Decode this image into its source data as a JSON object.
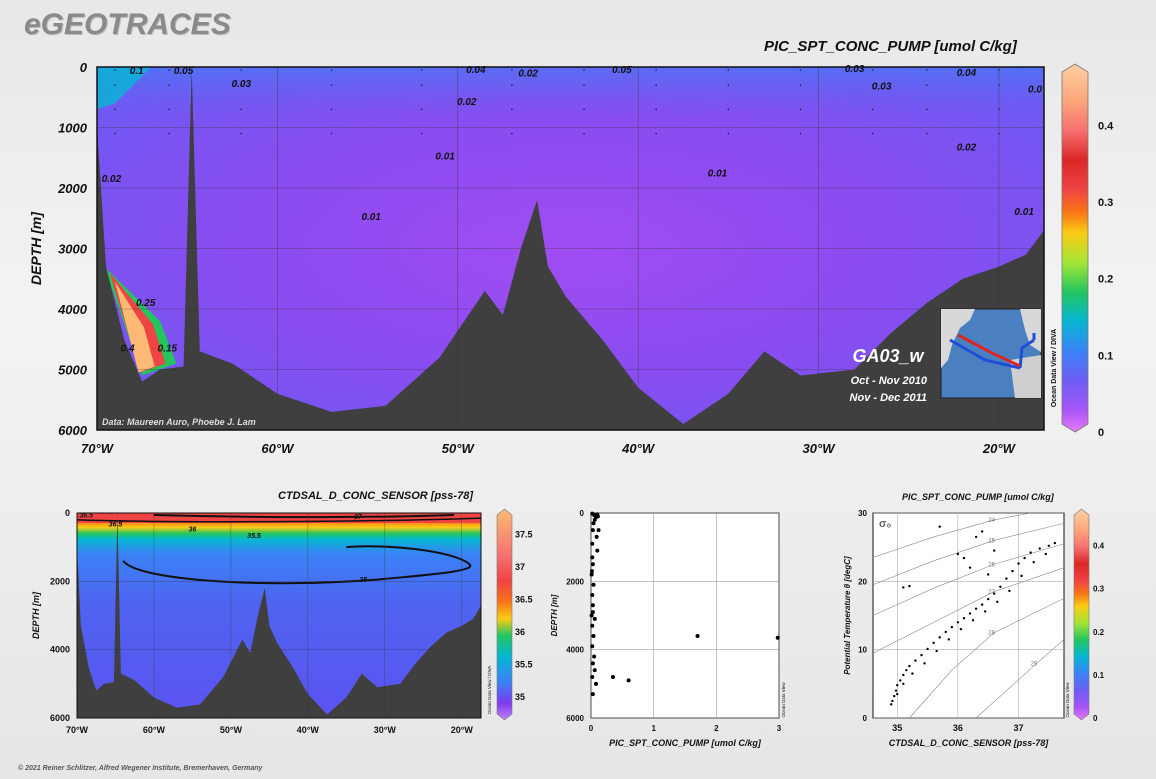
{
  "brand": "eGEOTRACES",
  "copyright": "© 2021 Reiner Schlitzer, Alfred Wegener Institute, Bremerhaven, Germany",
  "colors": {
    "land": "#3f3f3f",
    "background": "#ececec",
    "colormap": [
      "#a855f7",
      "#7c3aed",
      "#4f46e5",
      "#3b82f6",
      "#06b6d4",
      "#22c55e",
      "#84cc16",
      "#facc15",
      "#f97316",
      "#ef4444",
      "#dc2626",
      "#f87171",
      "#fdba74",
      "#fed7aa"
    ]
  },
  "main": {
    "title": "PIC_SPT_CONC_PUMP [umol C/kg]",
    "credit": "Data: Maureen Auro, Phoebe J. Lam",
    "section_label": "GA03_w",
    "dates": [
      "Oct - Nov 2010",
      "Nov - Dec 2011"
    ],
    "odv_tag": "Ocean Data View / DIVA"
  },
  "sal": {
    "title": "CTDSAL_D_CONC_SENSOR [pss-78]",
    "odv_tag": "Ocean Data View / DIVA"
  },
  "profile": {
    "odv_tag": "Ocean Data View"
  },
  "ts": {
    "title": "PIC_SPT_CONC_PUMP [umol C/kg]",
    "sigma_label": "σ₀",
    "odv_tag": "Ocean Data View"
  },
  "chart_data": [
    {
      "type": "heatmap",
      "id": "main-section",
      "title": "PIC_SPT_CONC_PUMP [umol C/kg]",
      "ylabel": "DEPTH [m]",
      "xlim": [
        -70,
        -17.5
      ],
      "ylim": [
        6000,
        0
      ],
      "x_ticks": [
        -70,
        -60,
        -50,
        -40,
        -30,
        -20
      ],
      "x_tick_labels": [
        "70°W",
        "60°W",
        "50°W",
        "40°W",
        "30°W",
        "20°W"
      ],
      "y_ticks": [
        0,
        1000,
        2000,
        3000,
        4000,
        5000,
        6000
      ],
      "y_tick_labels": [
        "0",
        "1000",
        "2000",
        "3000",
        "4000",
        "5000",
        "6000"
      ],
      "colorbar": {
        "range": [
          0,
          0.48
        ],
        "ticks": [
          0,
          0.1,
          0.2,
          0.3,
          0.4
        ],
        "tick_labels": [
          "0",
          "0.1",
          "0.2",
          "0.3",
          "0.4"
        ]
      },
      "bathymetry": [
        [
          -70,
          1000
        ],
        [
          -69.5,
          3300
        ],
        [
          -68.5,
          4500
        ],
        [
          -67.5,
          5200
        ],
        [
          -66.5,
          5000
        ],
        [
          -65.2,
          4950
        ],
        [
          -64.75,
          20
        ],
        [
          -64.3,
          4700
        ],
        [
          -62.5,
          4900
        ],
        [
          -60,
          5400
        ],
        [
          -57,
          5700
        ],
        [
          -54,
          5600
        ],
        [
          -51,
          4800
        ],
        [
          -48.5,
          3700
        ],
        [
          -47.5,
          4100
        ],
        [
          -46.5,
          3000
        ],
        [
          -45.6,
          2200
        ],
        [
          -45,
          3300
        ],
        [
          -44,
          3800
        ],
        [
          -42,
          4500
        ],
        [
          -40,
          5300
        ],
        [
          -37.5,
          5900
        ],
        [
          -35,
          5400
        ],
        [
          -33,
          4700
        ],
        [
          -31,
          5100
        ],
        [
          -28,
          5000
        ],
        [
          -26,
          4400
        ],
        [
          -24,
          3900
        ],
        [
          -22,
          3500
        ],
        [
          -20,
          3300
        ],
        [
          -18.5,
          3100
        ],
        [
          -17.5,
          2700
        ]
      ],
      "contour_labels": [
        {
          "x": -67.8,
          "y": 70,
          "value": "0.1"
        },
        {
          "x": -65.2,
          "y": 70,
          "value": "0.05"
        },
        {
          "x": -62,
          "y": 280,
          "value": "0.03"
        },
        {
          "x": -49,
          "y": 50,
          "value": "0.04"
        },
        {
          "x": -46.1,
          "y": 110,
          "value": "0.02"
        },
        {
          "x": -40.9,
          "y": 50,
          "value": "0.05"
        },
        {
          "x": -49.5,
          "y": 580,
          "value": "0.02"
        },
        {
          "x": -28,
          "y": 30,
          "value": "0.03"
        },
        {
          "x": -26.5,
          "y": 320,
          "value": "0.03"
        },
        {
          "x": -21.8,
          "y": 100,
          "value": "0.04"
        },
        {
          "x": -18,
          "y": 370,
          "value": "0.0"
        },
        {
          "x": -69.2,
          "y": 1850,
          "value": "0.02"
        },
        {
          "x": -50.7,
          "y": 1480,
          "value": "0.01"
        },
        {
          "x": -35.6,
          "y": 1760,
          "value": "0.01"
        },
        {
          "x": -21.8,
          "y": 1330,
          "value": "0.02"
        },
        {
          "x": -18.6,
          "y": 2400,
          "value": "0.01"
        },
        {
          "x": -54.8,
          "y": 2480,
          "value": "0.01"
        },
        {
          "x": -67.3,
          "y": 3900,
          "value": "0.25"
        },
        {
          "x": -68.3,
          "y": 4650,
          "value": "0.4"
        },
        {
          "x": -66.1,
          "y": 4650,
          "value": "0.15"
        }
      ]
    },
    {
      "type": "heatmap",
      "id": "salinity-section",
      "title": "CTDSAL_D_CONC_SENSOR [pss-78]",
      "ylabel": "DEPTH [m]",
      "xlim": [
        -70,
        -17.5
      ],
      "ylim": [
        6000,
        0
      ],
      "x_ticks": [
        -70,
        -60,
        -50,
        -40,
        -30,
        -20
      ],
      "x_tick_labels": [
        "70°W",
        "60°W",
        "50°W",
        "40°W",
        "30°W",
        "20°W"
      ],
      "y_ticks": [
        0,
        2000,
        4000,
        6000
      ],
      "y_tick_labels": [
        "0",
        "2000",
        "4000",
        "6000"
      ],
      "colorbar": {
        "range": [
          34.8,
          37.8
        ],
        "ticks": [
          35,
          35.5,
          36,
          36.5,
          37,
          37.5
        ],
        "tick_labels": [
          "35",
          "35.5",
          "36",
          "36.5",
          "37",
          "37.5"
        ]
      },
      "contour_labels": [
        {
          "x": -68.8,
          "y": 80,
          "value": "36.5"
        },
        {
          "x": -65,
          "y": 330,
          "value": "36.5"
        },
        {
          "x": -55,
          "y": 490,
          "value": "36"
        },
        {
          "x": -47,
          "y": 680,
          "value": "35.5"
        },
        {
          "x": -33.5,
          "y": 120,
          "value": "37"
        },
        {
          "x": -32.8,
          "y": 1960,
          "value": "35"
        }
      ]
    },
    {
      "type": "scatter",
      "id": "depth-profile",
      "xlabel": "PIC_SPT_CONC_PUMP [umol C/kg]",
      "ylabel": "DEPTH [m]",
      "xlim": [
        0,
        3
      ],
      "ylim": [
        6000,
        0
      ],
      "x_ticks": [
        0,
        1,
        2,
        3
      ],
      "y_ticks": [
        0,
        2000,
        4000,
        6000
      ],
      "points": [
        [
          0.02,
          20
        ],
        [
          0.05,
          60
        ],
        [
          0.08,
          120
        ],
        [
          0.1,
          40
        ],
        [
          0.06,
          200
        ],
        [
          0.04,
          300
        ],
        [
          0.03,
          500
        ],
        [
          0.09,
          700
        ],
        [
          0.02,
          900
        ],
        [
          0.1,
          1100
        ],
        [
          0.02,
          1300
        ],
        [
          0.03,
          1500
        ],
        [
          0.01,
          1800
        ],
        [
          0.04,
          2100
        ],
        [
          0.02,
          2400
        ],
        [
          0.03,
          2700
        ],
        [
          0.01,
          3000
        ],
        [
          0.02,
          3300
        ],
        [
          0.04,
          3600
        ],
        [
          0.02,
          3900
        ],
        [
          0.05,
          4200
        ],
        [
          0.03,
          4400
        ],
        [
          0.06,
          4600
        ],
        [
          0.02,
          4800
        ],
        [
          0.08,
          5000
        ],
        [
          0.03,
          5300
        ],
        [
          0.12,
          500
        ],
        [
          0.11,
          100
        ],
        [
          0.07,
          80
        ],
        [
          0.015,
          1700
        ],
        [
          0.03,
          2900
        ],
        [
          0.06,
          3100
        ],
        [
          0.35,
          4800
        ],
        [
          0.6,
          4900
        ],
        [
          1.7,
          3600
        ],
        [
          2.98,
          3650
        ]
      ]
    },
    {
      "type": "scatter",
      "id": "ts-diagram",
      "title": "PIC_SPT_CONC_PUMP [umol C/kg]",
      "xlabel": "CTDSAL_D_CONC_SENSOR [pss-78]",
      "ylabel": "Potential Temperature θ [degC]",
      "xlim": [
        34.6,
        37.75
      ],
      "ylim": [
        0,
        30
      ],
      "x_ticks": [
        35,
        36,
        37
      ],
      "y_ticks": [
        0,
        10,
        20,
        30
      ],
      "isopycnal_labels": [
        "24",
        "25",
        "26",
        "27",
        "28",
        "29"
      ],
      "colorbar": {
        "range": [
          0,
          0.48
        ],
        "ticks": [
          0,
          0.1,
          0.2,
          0.3,
          0.4
        ],
        "tick_labels": [
          "0",
          "0.1",
          "0.2",
          "0.3",
          "0.4"
        ]
      },
      "points": [
        [
          34.9,
          2.0
        ],
        [
          34.92,
          2.5
        ],
        [
          34.95,
          3.2
        ],
        [
          34.98,
          4.0
        ],
        [
          35.0,
          4.8
        ],
        [
          35.05,
          5.5
        ],
        [
          35.1,
          6.3
        ],
        [
          35.15,
          7.0
        ],
        [
          35.2,
          7.6
        ],
        [
          35.3,
          8.4
        ],
        [
          35.4,
          9.2
        ],
        [
          35.5,
          10.1
        ],
        [
          35.6,
          11.0
        ],
        [
          35.7,
          11.8
        ],
        [
          35.8,
          12.6
        ],
        [
          35.9,
          13.3
        ],
        [
          36.0,
          14.0
        ],
        [
          36.1,
          14.6
        ],
        [
          36.2,
          15.3
        ],
        [
          36.3,
          16.0
        ],
        [
          36.4,
          16.6
        ],
        [
          36.5,
          17.4
        ],
        [
          36.6,
          18.2
        ],
        [
          36.7,
          19.2
        ],
        [
          36.8,
          20.4
        ],
        [
          36.9,
          21.5
        ],
        [
          37.0,
          22.6
        ],
        [
          37.1,
          23.4
        ],
        [
          37.2,
          24.2
        ],
        [
          37.35,
          24.8
        ],
        [
          37.5,
          25.2
        ],
        [
          37.6,
          25.6
        ],
        [
          35.0,
          3.5
        ],
        [
          35.1,
          5.0
        ],
        [
          35.25,
          6.5
        ],
        [
          35.45,
          8.0
        ],
        [
          35.65,
          9.8
        ],
        [
          35.85,
          11.5
        ],
        [
          36.05,
          13.0
        ],
        [
          36.25,
          14.3
        ],
        [
          36.45,
          15.6
        ],
        [
          36.65,
          17.0
        ],
        [
          36.85,
          18.6
        ],
        [
          37.05,
          20.8
        ],
        [
          37.25,
          22.8
        ],
        [
          37.45,
          24.0
        ],
        [
          36.3,
          26.5
        ],
        [
          36.2,
          22.0
        ],
        [
          36.1,
          23.4
        ],
        [
          36.5,
          21.0
        ],
        [
          35.1,
          19.1
        ],
        [
          35.2,
          19.3
        ],
        [
          36.4,
          27.3
        ],
        [
          35.7,
          28.0
        ],
        [
          36.6,
          24.5
        ],
        [
          36.0,
          24.0
        ]
      ]
    }
  ]
}
